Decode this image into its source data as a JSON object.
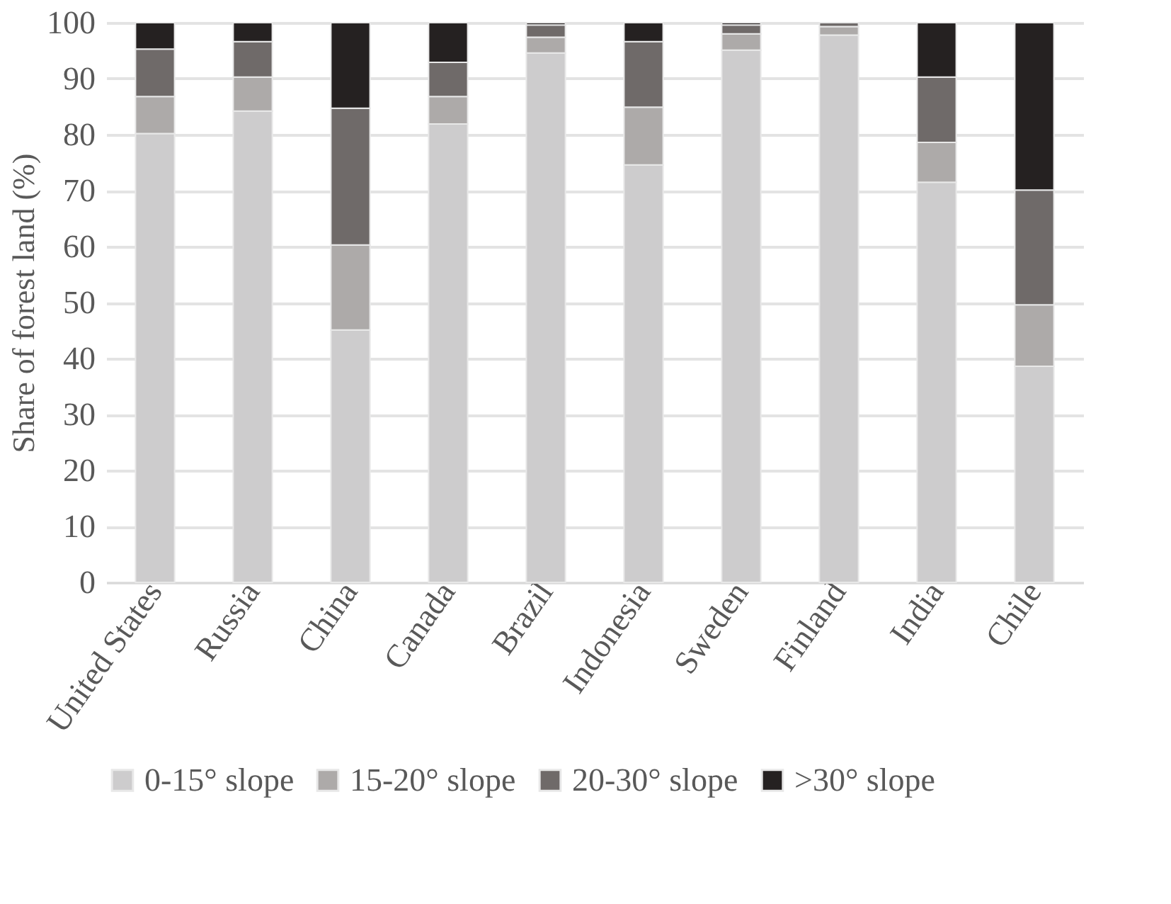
{
  "chart_data": {
    "type": "bar",
    "stacked": true,
    "ylabel": "Share of forest land (%)",
    "categories": [
      "United States",
      "Russia",
      "China",
      "Canada",
      "Brazil",
      "Indonesia",
      "Sweden",
      "Finland",
      "India",
      "Chile"
    ],
    "series": [
      {
        "name": "0-15° slope",
        "color": "#cdcccd",
        "values": [
          80.2,
          84.2,
          45.1,
          81.9,
          94.6,
          74.6,
          95.1,
          97.8,
          71.5,
          38.6
        ]
      },
      {
        "name": "15-20° slope",
        "color": "#adaaa9",
        "values": [
          6.6,
          6.1,
          15.2,
          4.9,
          2.8,
          10.3,
          2.9,
          1.5,
          7.1,
          11.0
        ]
      },
      {
        "name": "20-30° slope",
        "color": "#6f6a69",
        "values": [
          8.5,
          6.3,
          24.4,
          6.1,
          2.2,
          11.7,
          1.6,
          0.7,
          11.7,
          20.5
        ]
      },
      {
        "name": ">30° slope",
        "color": "#252121",
        "values": [
          4.7,
          3.4,
          15.3,
          7.1,
          0.4,
          3.4,
          0.4,
          null,
          9.7,
          29.9
        ]
      }
    ],
    "ylim": [
      0,
      100
    ],
    "yticks": [
      0,
      10,
      20,
      30,
      40,
      50,
      60,
      70,
      80,
      90,
      100
    ],
    "grid": "y",
    "legend": "bottom"
  }
}
